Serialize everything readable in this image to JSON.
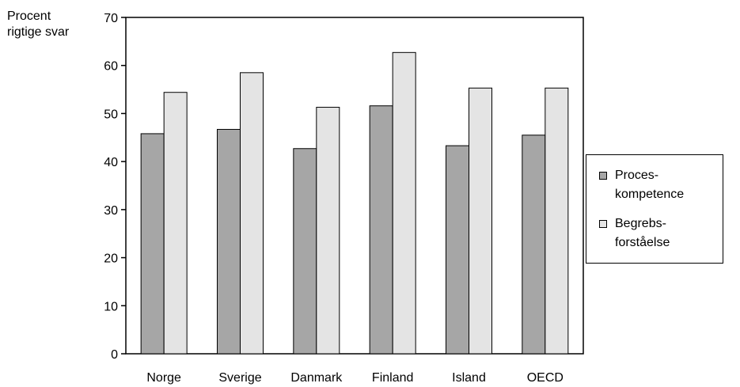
{
  "chart_data": {
    "type": "bar",
    "title": "",
    "xlabel": "",
    "ylabel": "Procent\nrigtige svar",
    "ylabel_lines": [
      "Procent",
      "rigtige svar"
    ],
    "ylim": [
      0,
      70
    ],
    "yticks": [
      0,
      10,
      20,
      30,
      40,
      50,
      60,
      70
    ],
    "categories": [
      "Norge",
      "Sverige",
      "Danmark",
      "Finland",
      "Island",
      "OECD"
    ],
    "series": [
      {
        "name": "Proces-kompetence",
        "label_lines": [
          "Proces-",
          "kompetence"
        ],
        "color": "#a6a6a6",
        "values": [
          45.8,
          46.7,
          42.7,
          51.6,
          43.3,
          45.5
        ]
      },
      {
        "name": "Begrebs-forståelse",
        "label_lines": [
          "Begrebs-",
          "forståelse"
        ],
        "color": "#e4e4e4",
        "values": [
          54.4,
          58.5,
          51.3,
          62.7,
          55.3,
          55.3
        ]
      }
    ],
    "grid": false,
    "legend_position": "right"
  }
}
